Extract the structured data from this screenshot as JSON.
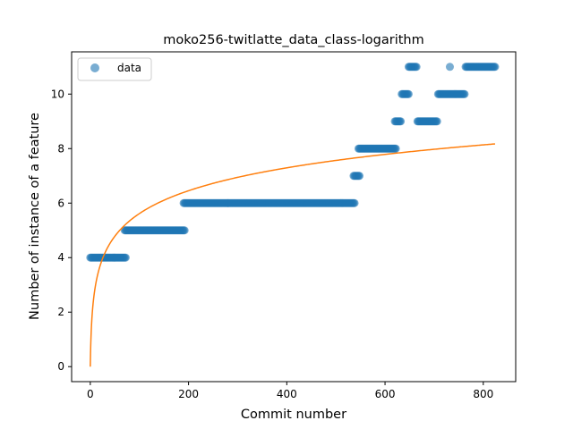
{
  "chart_data": {
    "type": "scatter",
    "title": "moko256-twitlatte_data_class-logarithm",
    "xlabel": "Commit number",
    "ylabel": "Number of instance of a feature",
    "xlim": [
      -38,
      866
    ],
    "ylim": [
      -0.55,
      11.55
    ],
    "xticks": [
      0,
      200,
      400,
      600,
      800
    ],
    "yticks": [
      0,
      2,
      4,
      6,
      8,
      10
    ],
    "grid": false,
    "legend": {
      "placement": "top-left",
      "entries": [
        "data"
      ]
    },
    "colors": {
      "data": "#1f77b4",
      "fit": "#ff7f0e"
    },
    "series": [
      {
        "name": "data",
        "kind": "points",
        "segments": [
          {
            "x_start": 0,
            "x_end": 72,
            "y": 4
          },
          {
            "x_start": 70,
            "x_end": 192,
            "y": 5
          },
          {
            "x_start": 190,
            "x_end": 538,
            "y": 6
          },
          {
            "x_start": 536,
            "x_end": 548,
            "y": 7
          },
          {
            "x_start": 546,
            "x_end": 622,
            "y": 8
          },
          {
            "x_start": 620,
            "x_end": 632,
            "y": 9
          },
          {
            "x_start": 634,
            "x_end": 648,
            "y": 10
          },
          {
            "x_start": 648,
            "x_end": 664,
            "y": 11
          },
          {
            "x_start": 666,
            "x_end": 706,
            "y": 9
          },
          {
            "x_start": 708,
            "x_end": 762,
            "y": 10
          },
          {
            "x_start": 732,
            "x_end": 732,
            "y": 11
          },
          {
            "x_start": 764,
            "x_end": 824,
            "y": 11
          }
        ]
      },
      {
        "kind": "fit-line",
        "model": "y = a * ln(x + 1)",
        "a": 1.217,
        "x_range": [
          0,
          824
        ]
      }
    ]
  }
}
